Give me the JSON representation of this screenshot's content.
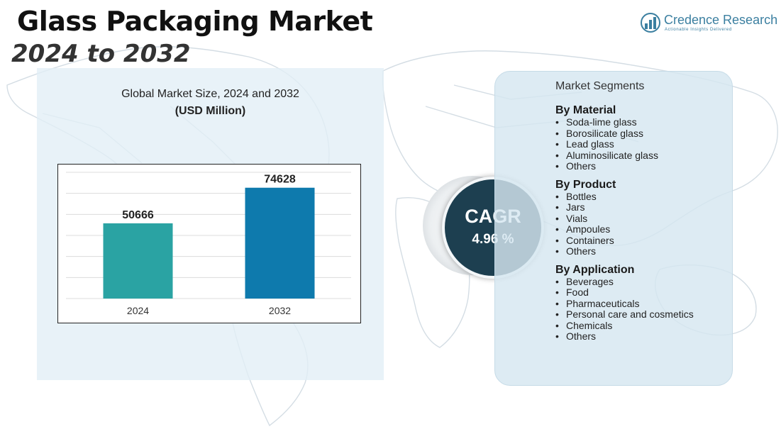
{
  "header": {
    "title": "Glass Packaging Market",
    "years": "2024 to 2032"
  },
  "logo": {
    "name": "Credence Research",
    "tagline": "Actionable Insights Delivered"
  },
  "chart_data": {
    "type": "bar",
    "title": "Global Market Size, 2024 and 2032",
    "unit": "(USD Million)",
    "categories": [
      "2024",
      "2032"
    ],
    "values": [
      50666,
      74628
    ],
    "data_labels": [
      "50666",
      "74628"
    ],
    "ylim": [
      0,
      85000
    ],
    "grid": true,
    "colors": [
      "#2aa3a3",
      "#0e7aad"
    ]
  },
  "cagr": {
    "label": "CAGR",
    "value": "4.96 %"
  },
  "segments": {
    "heading": "Market Segments",
    "groups": [
      {
        "title": "By Material",
        "items": [
          "Soda-lime glass",
          "Borosilicate glass",
          "Lead glass",
          "Aluminosilicate glass",
          "Others"
        ]
      },
      {
        "title": "By Product",
        "items": [
          "Bottles",
          "Jars",
          "Vials",
          "Ampoules",
          "Containers",
          "Others"
        ]
      },
      {
        "title": "By Application",
        "items": [
          "Beverages",
          "Food",
          "Pharmaceuticals",
          "Personal care and cosmetics",
          "Chemicals",
          "Others"
        ]
      }
    ]
  }
}
